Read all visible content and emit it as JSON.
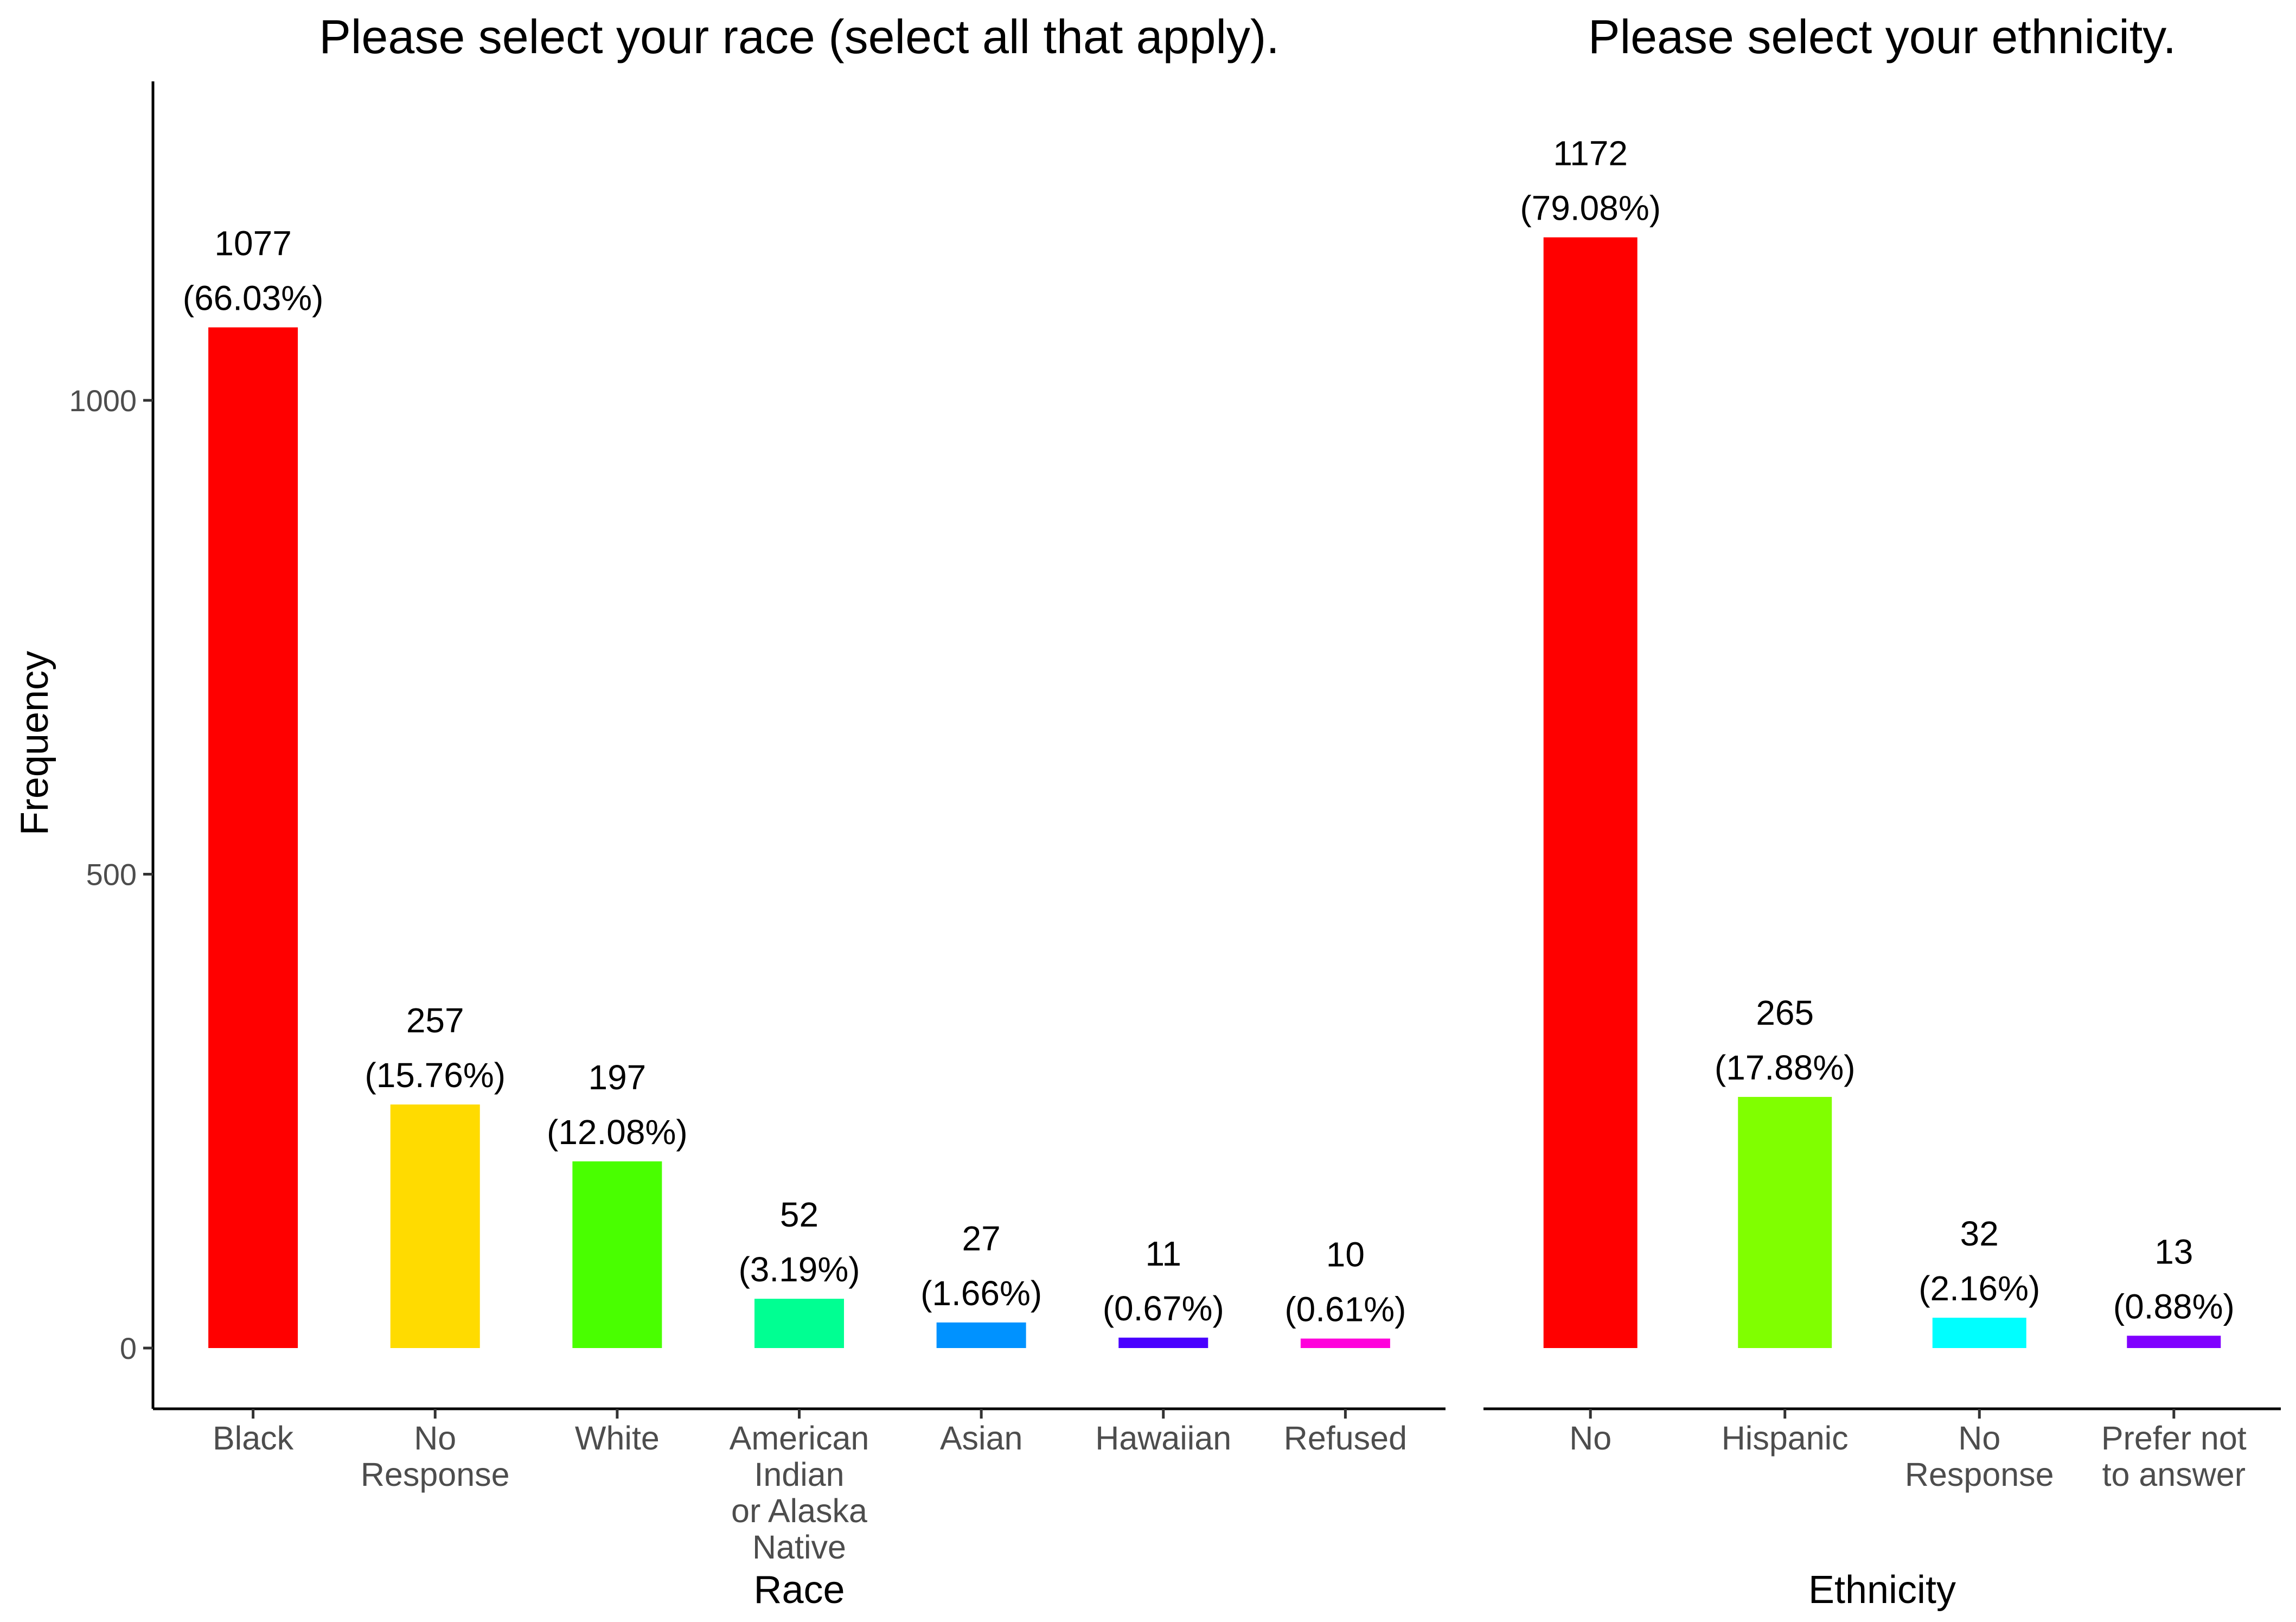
{
  "ylabel": "Frequency",
  "y_ticks": [
    0,
    500,
    1000
  ],
  "chart_data": [
    {
      "type": "bar",
      "title": "Please select your race (select all that apply).",
      "xlabel": "Race",
      "ylabel": "Frequency",
      "ylim": [
        -62,
        1310
      ],
      "grid": false,
      "legend": "none",
      "categories": [
        "Black",
        "No Response",
        "White",
        "American Indian or Alaska Native",
        "Asian",
        "Hawaiian",
        "Refused"
      ],
      "category_label_lines": [
        [
          "Black"
        ],
        [
          "No",
          "Response"
        ],
        [
          "White"
        ],
        [
          "American",
          "Indian",
          "or Alaska",
          "Native"
        ],
        [
          "Asian"
        ],
        [
          "Hawaiian"
        ],
        [
          "Refused"
        ]
      ],
      "values": [
        1077,
        257,
        197,
        52,
        27,
        11,
        10
      ],
      "percent_labels": [
        "(66.03%)",
        "(15.76%)",
        "(12.08%)",
        "(3.19%)",
        "(1.66%)",
        "(0.67%)",
        "(0.61%)"
      ],
      "colors": [
        "#FF0000",
        "#FFDB00",
        "#49FF00",
        "#00FF92",
        "#0092FF",
        "#4900FF",
        "#FF00DB"
      ]
    },
    {
      "type": "bar",
      "title": "Please select your ethnicity.",
      "xlabel": "Ethnicity",
      "ylabel": "",
      "ylim": [
        -62,
        1310
      ],
      "grid": false,
      "legend": "none",
      "categories": [
        "No",
        "Hispanic",
        "No Response",
        "Prefer not to answer"
      ],
      "category_label_lines": [
        [
          "No"
        ],
        [
          "Hispanic"
        ],
        [
          "No",
          "Response"
        ],
        [
          "Prefer not",
          "to answer"
        ]
      ],
      "values": [
        1172,
        265,
        32,
        13
      ],
      "percent_labels": [
        "(79.08%)",
        "(17.88%)",
        "(2.16%)",
        "(0.88%)"
      ],
      "colors": [
        "#FF0000",
        "#80FF00",
        "#00FFFF",
        "#8000FF"
      ]
    }
  ]
}
